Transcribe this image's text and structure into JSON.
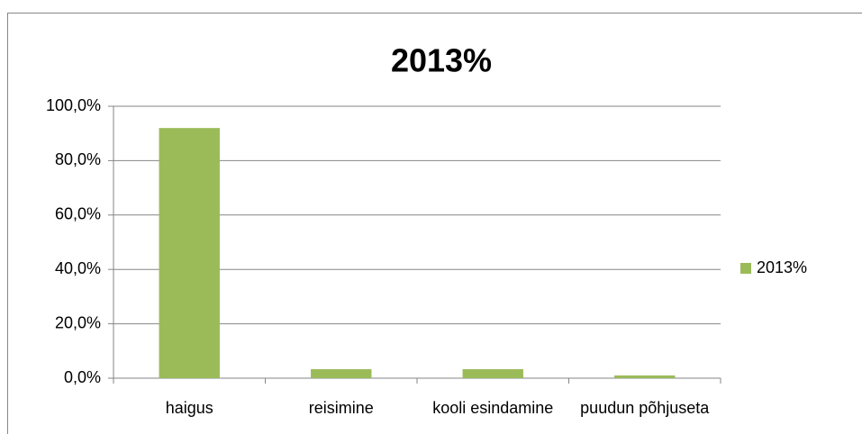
{
  "chart_data": {
    "type": "bar",
    "title": "2013%",
    "categories": [
      "haigus",
      "reisimine",
      "kooli esindamine",
      "puudun põhjuseta"
    ],
    "series": [
      {
        "name": "2013%",
        "color": "#9bbb59",
        "values": [
          92,
          3.3,
          3.3,
          1
        ]
      }
    ],
    "ylim": [
      0,
      100
    ],
    "yticks": [
      {
        "value": 0,
        "label": "0,0%"
      },
      {
        "value": 20,
        "label": "20,0%"
      },
      {
        "value": 40,
        "label": "40,0%"
      },
      {
        "value": 60,
        "label": "60,0%"
      },
      {
        "value": 80,
        "label": "80,0%"
      },
      {
        "value": 100,
        "label": "100,0%"
      }
    ],
    "grid": true,
    "legend": "right"
  }
}
